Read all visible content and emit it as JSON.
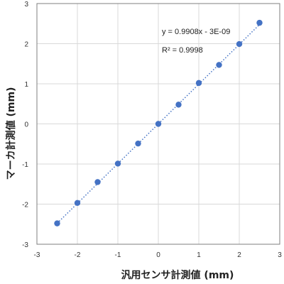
{
  "chart_data": {
    "type": "scatter",
    "xlabel": "汎用センサ計測値 (mm)",
    "ylabel": "マーカ計測値 (mm)",
    "xlim": [
      -3,
      3
    ],
    "ylim": [
      -3,
      3
    ],
    "xticks": [
      "-3",
      "-2",
      "-1",
      "0",
      "1",
      "2",
      "3"
    ],
    "yticks": [
      "-3",
      "-2",
      "-1",
      "0",
      "1",
      "2",
      "3"
    ],
    "grid": true,
    "series": [
      {
        "x": [
          -2.5,
          -2.0,
          -1.5,
          -1.0,
          -0.5,
          0.0,
          0.5,
          1.0,
          1.5,
          2.0,
          2.5
        ],
        "y": [
          -2.48,
          -1.97,
          -1.45,
          -0.99,
          -0.49,
          0.0,
          0.48,
          1.02,
          1.47,
          1.99,
          2.52
        ],
        "color": "#4472C4"
      }
    ],
    "trendline": {
      "type": "linear",
      "slope": 0.9908,
      "intercept": 0,
      "style": "dotted",
      "color": "#4472C4"
    },
    "annotations": {
      "equation": "y = 0.9908x - 3E-09",
      "r2": "R² = 0.9998"
    }
  }
}
